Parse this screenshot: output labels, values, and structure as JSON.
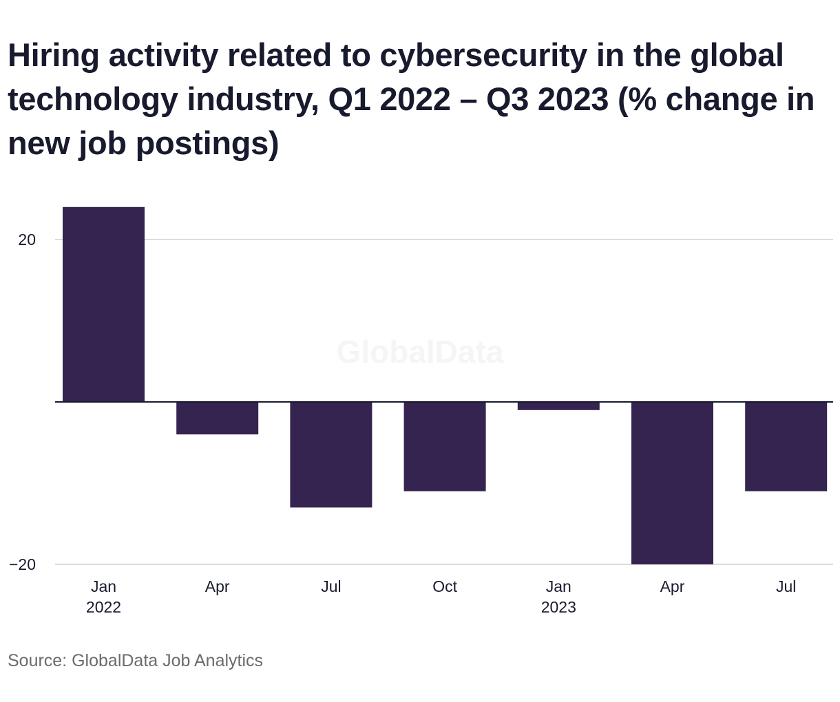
{
  "chart_data": {
    "type": "bar",
    "title": "Hiring activity related to cybersecurity in the global technology industry, Q1 2022 – Q3 2023 (% change in new job postings)",
    "xlabel": "",
    "ylabel": "",
    "categories": [
      "Jan 2022",
      "Apr 2022",
      "Jul 2022",
      "Oct 2022",
      "Jan 2023",
      "Apr 2023",
      "Jul 2023"
    ],
    "x_tick_labels": [
      {
        "line1": "Jan",
        "line2": "2022"
      },
      {
        "line1": "Apr",
        "line2": ""
      },
      {
        "line1": "Jul",
        "line2": ""
      },
      {
        "line1": "Oct",
        "line2": ""
      },
      {
        "line1": "Jan",
        "line2": "2023"
      },
      {
        "line1": "Apr",
        "line2": ""
      },
      {
        "line1": "Jul",
        "line2": ""
      }
    ],
    "values": [
      24,
      -4,
      -13,
      -11,
      -1,
      -20,
      -11
    ],
    "ylim": [
      -20,
      24
    ],
    "y_ticks": [
      {
        "value": 20,
        "label": "20"
      },
      {
        "value": -20,
        "label": "−20"
      }
    ],
    "grid": true,
    "legend": "none",
    "bar_color": "#352350",
    "source": "Source: GlobalData Job Analytics",
    "watermark": "GlobalData"
  }
}
